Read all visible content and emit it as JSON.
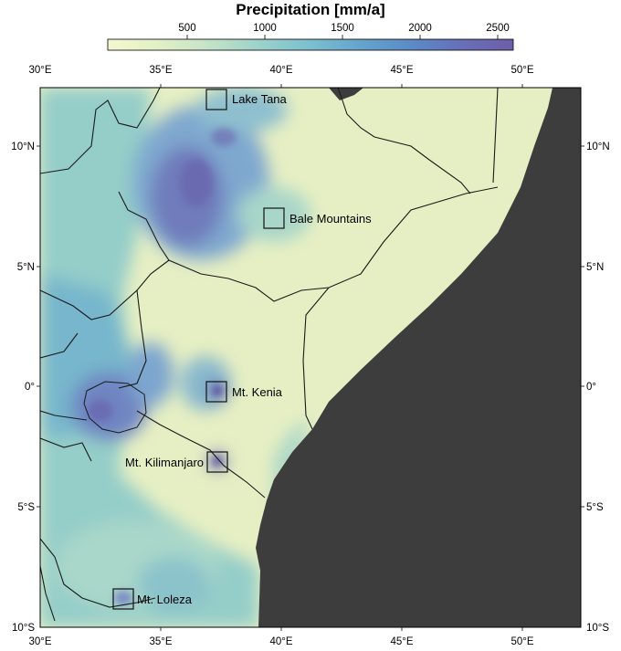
{
  "legend": {
    "title": "Precipitation [mm/a]",
    "ticks": [
      "500",
      "1000",
      "1500",
      "2000",
      "2500"
    ],
    "colors": [
      "#f4f7cf",
      "#e3f0c6",
      "#c3e3c7",
      "#9dd2ca",
      "#7bbfcf",
      "#65a5cd",
      "#5c8ac6",
      "#6670b8",
      "#6e5ea8"
    ]
  },
  "axes": {
    "top": [
      "30°E",
      "35°E",
      "40°E",
      "45°E",
      "50°E"
    ],
    "bottom": [
      "30°E",
      "35°E",
      "40°E",
      "45°E",
      "50°E"
    ],
    "left": [
      "10°N",
      "5°N",
      "0°",
      "5°S",
      "10°S"
    ],
    "right": [
      "10°N",
      "5°N",
      "0°",
      "5°S",
      "10°S"
    ]
  },
  "sites": [
    {
      "id": "lake-tana",
      "label": "Lake Tana"
    },
    {
      "id": "bale-mountains",
      "label": "Bale Mountains"
    },
    {
      "id": "mt-kenia",
      "label": "Mt. Kenia"
    },
    {
      "id": "mt-kilimanjaro",
      "label": "Mt. Kilimanjaro"
    },
    {
      "id": "mt-loleza",
      "label": "Mt. Loleza"
    }
  ],
  "colors": {
    "ocean": "#3d3d3d",
    "land_dry": "#eef3c8",
    "land_wet": "#86c3cc",
    "land_very_wet": "#6f73b7",
    "border": "#1a1a1a"
  }
}
